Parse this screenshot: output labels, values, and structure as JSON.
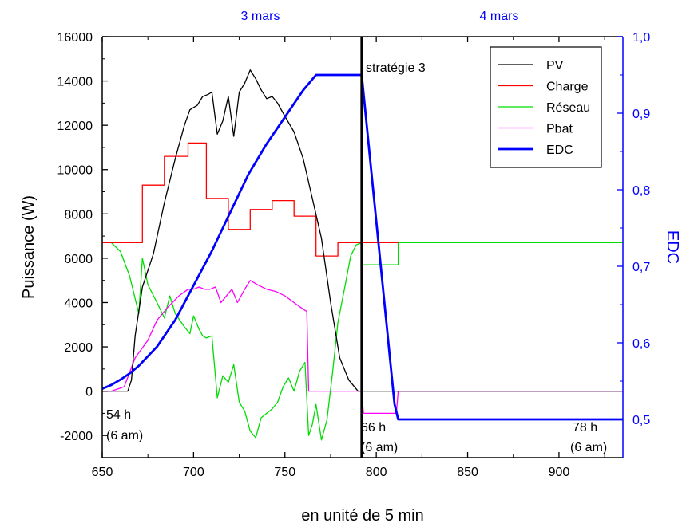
{
  "chart_data": {
    "type": "line",
    "title": "",
    "xlabel": "en unité de 5 min",
    "ylabel": "Puissance (W)",
    "y2label": "EDC",
    "xlim": [
      650,
      935
    ],
    "ylim": [
      -3000,
      16000
    ],
    "y2lim": [
      0.45,
      1.0
    ],
    "x_ticks": [
      650,
      700,
      750,
      800,
      850,
      900
    ],
    "y_ticks": [
      -2000,
      0,
      2000,
      4000,
      6000,
      8000,
      10000,
      12000,
      14000,
      16000
    ],
    "y2_ticks": [
      0.5,
      0.6,
      0.7,
      0.8,
      0.9,
      1.0
    ],
    "y2_tick_labels": [
      "0,5",
      "0,6",
      "0,7",
      "0,8",
      "0,9",
      "1,0"
    ],
    "top_labels": [
      "3 mars",
      "4 mars"
    ],
    "vline_x": 792,
    "annotations": [
      "stratégie 3",
      "54 h",
      "(6 am)",
      "66 h",
      "(6 am)",
      "78 h",
      "(6 am)"
    ],
    "legend_position": "top-right",
    "grid": false,
    "colors": {
      "PV": "#000000",
      "Charge": "#ff0000",
      "Reseau": "#00dd00",
      "Pbat": "#ff00ff",
      "EDC": "#0000ff",
      "right_axis": "#0000ff"
    },
    "series": [
      {
        "name": "PV",
        "axis": "left",
        "x": [
          650,
          664,
          666,
          668,
          672,
          678,
          684,
          690,
          695,
          698,
          702,
          705,
          708,
          710,
          713,
          716,
          719,
          722,
          725,
          728,
          731,
          734,
          737,
          740,
          743,
          746,
          750,
          755,
          760,
          765,
          770,
          775,
          780,
          785,
          790,
          792,
          800,
          810,
          935
        ],
        "y": [
          0,
          0,
          500,
          2500,
          4700,
          6200,
          8500,
          10500,
          12000,
          12700,
          12900,
          13300,
          13400,
          13500,
          11600,
          12200,
          13300,
          11500,
          13500,
          13900,
          14500,
          14100,
          13600,
          13200,
          13300,
          13000,
          12400,
          11700,
          10500,
          8700,
          6900,
          4000,
          1500,
          500,
          0,
          0,
          0,
          0,
          0
        ]
      },
      {
        "name": "Charge",
        "axis": "left",
        "x": [
          650,
          672,
          672,
          684,
          684,
          697,
          697,
          707,
          707,
          719,
          719,
          731,
          731,
          743,
          743,
          755,
          755,
          767,
          767,
          779,
          779,
          792,
          812
        ],
        "y": [
          6700,
          6700,
          9300,
          9300,
          10600,
          10600,
          11200,
          11200,
          8700,
          8700,
          7300,
          7300,
          8200,
          8200,
          8600,
          8600,
          7900,
          7900,
          6100,
          6100,
          6700,
          6700,
          6700
        ]
      },
      {
        "name": "Réseau",
        "axis": "left",
        "x": [
          650,
          655,
          660,
          665,
          670,
          672,
          675,
          680,
          684,
          687,
          690,
          695,
          698,
          700,
          703,
          705,
          707,
          710,
          713,
          716,
          719,
          722,
          725,
          728,
          731,
          734,
          737,
          740,
          743,
          746,
          749,
          752,
          755,
          758,
          761,
          763,
          765,
          767,
          770,
          773,
          776,
          779,
          783,
          786,
          789,
          792,
          792,
          812,
          812,
          935
        ],
        "y": [
          6700,
          6700,
          6300,
          5200,
          3500,
          6000,
          4800,
          4000,
          3300,
          4300,
          3500,
          2900,
          2600,
          3400,
          2800,
          2500,
          2400,
          2500,
          -300,
          700,
          400,
          1200,
          -500,
          -900,
          -1800,
          -2100,
          -1200,
          -1000,
          -800,
          -500,
          200,
          600,
          0,
          900,
          1300,
          -2000,
          -1500,
          -600,
          -2200,
          -1300,
          800,
          3100,
          4800,
          6100,
          6600,
          6700,
          5700,
          5700,
          6700,
          6700
        ]
      },
      {
        "name": "Pbat",
        "axis": "left",
        "x": [
          650,
          655,
          662,
          668,
          675,
          680,
          686,
          692,
          697,
          700,
          703,
          706,
          709,
          712,
          715,
          718,
          721,
          724,
          728,
          731,
          735,
          740,
          745,
          750,
          755,
          760,
          762,
          763,
          775,
          792,
          793,
          811,
          812,
          935
        ],
        "y": [
          0,
          0,
          200,
          1500,
          2300,
          3200,
          3800,
          4300,
          4600,
          4600,
          4700,
          4600,
          4600,
          4700,
          4000,
          4300,
          4600,
          4000,
          4600,
          5000,
          4800,
          4600,
          4500,
          4300,
          4000,
          3700,
          3600,
          0,
          0,
          0,
          -1000,
          -1000,
          0,
          0
        ]
      },
      {
        "name": "EDC",
        "axis": "right",
        "x": [
          650,
          655,
          660,
          665,
          670,
          680,
          690,
          700,
          710,
          720,
          730,
          740,
          750,
          760,
          767,
          792,
          810,
          812,
          935
        ],
        "y": [
          0.54,
          0.545,
          0.552,
          0.56,
          0.57,
          0.595,
          0.63,
          0.675,
          0.72,
          0.77,
          0.82,
          0.86,
          0.895,
          0.93,
          0.95,
          0.95,
          0.52,
          0.5,
          0.5
        ]
      }
    ]
  }
}
